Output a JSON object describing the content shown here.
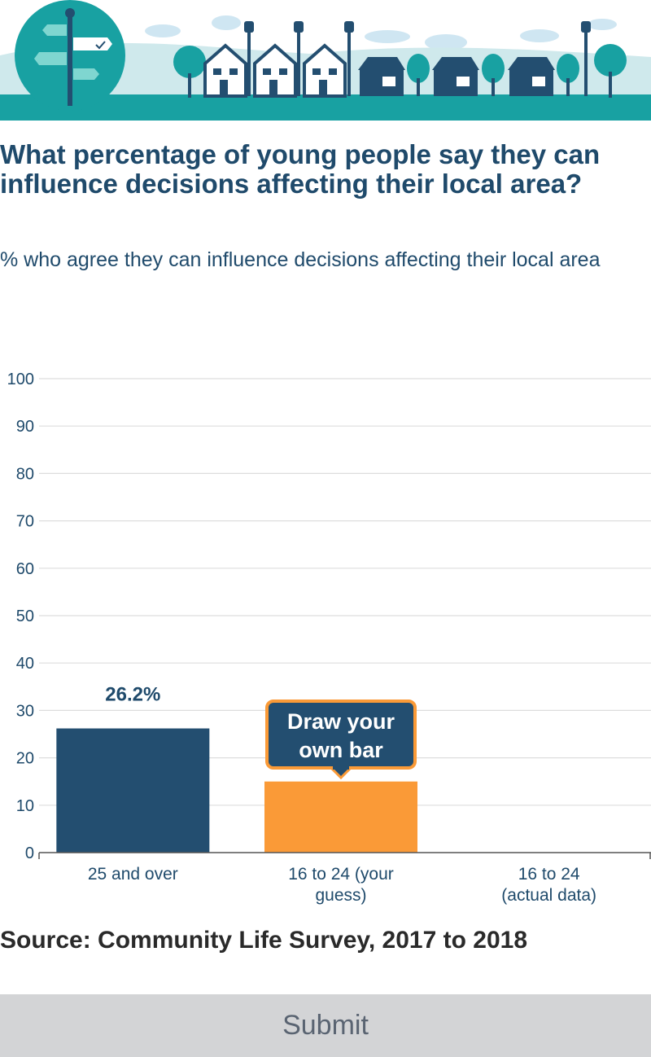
{
  "question": {
    "title": "What percentage of young people say they can influence decisions affecting their local area?",
    "subtitle": "% who agree they can influence decisions affecting their local area"
  },
  "chart_data": {
    "type": "bar",
    "title": "",
    "xlabel": "",
    "ylabel": "",
    "ylim": [
      0,
      100
    ],
    "yticks": [
      "0",
      "10",
      "20",
      "30",
      "40",
      "50",
      "60",
      "70",
      "80",
      "90",
      "100"
    ],
    "grid": true,
    "categories": [
      "25 and over",
      "16 to 24 (your guess)",
      "16 to 24 (actual data)"
    ],
    "category_lines": [
      [
        "25 and over"
      ],
      [
        "16 to 24 (your",
        "guess)"
      ],
      [
        "16 to 24",
        "(actual data)"
      ]
    ],
    "values": [
      26.2,
      15,
      null
    ],
    "data_labels": [
      "26.2%",
      "",
      ""
    ],
    "bar_colors": [
      "#234e70",
      "#fa9a37",
      "#234e70"
    ],
    "callout": {
      "line1": "Draw your",
      "line2": "own bar",
      "color": "#234e70",
      "border": "#fa9a37"
    }
  },
  "source": "Source: Community Life Survey, 2017 to 2018",
  "submit_label": "Submit",
  "colors": {
    "navy": "#234e70",
    "teal": "#18a1a2",
    "orange": "#fa9a37",
    "grid": "#dddddd"
  }
}
